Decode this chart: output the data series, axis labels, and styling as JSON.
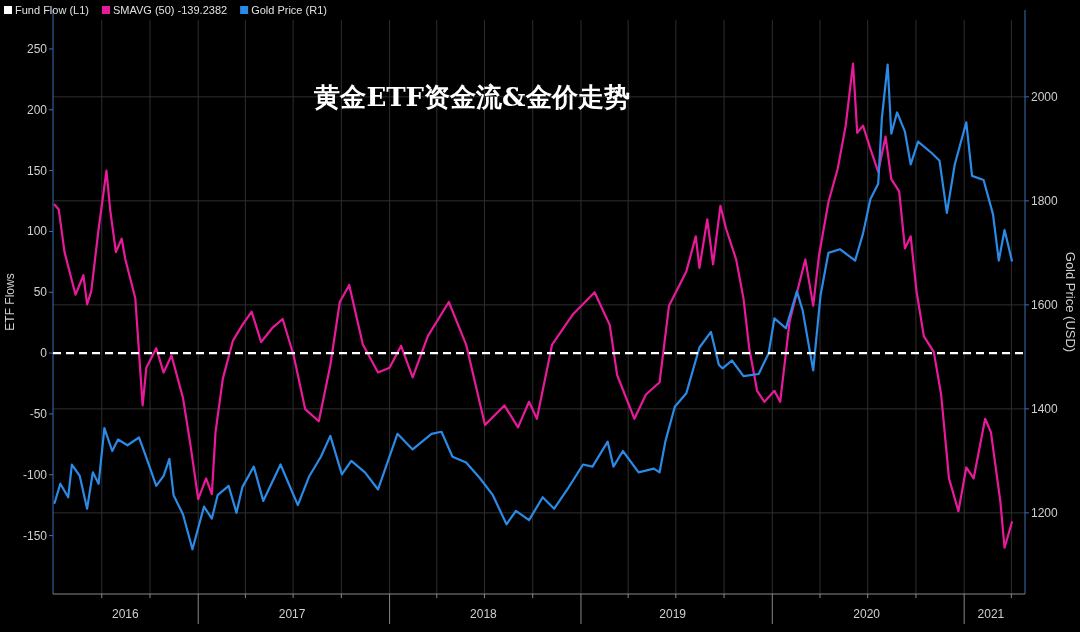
{
  "chart_data": {
    "type": "line",
    "title": "黄金ETF资金流&金价走势",
    "ylabel": "ETF Flows",
    "y2label": "Gold Price (USD)",
    "annotations": [
      "Fund Flow (L1)"
    ],
    "xlim": [
      "2016-03-30",
      "2021-04-27"
    ],
    "xticks": [
      {
        "value": "2016-07-01",
        "label": null
      },
      {
        "value": "2016-08-15",
        "label": "2016"
      },
      {
        "value": "2016-10-01",
        "label": null
      },
      {
        "value": "2017-01-01",
        "label": null
      },
      {
        "value": "2017-04-01",
        "label": null
      },
      {
        "value": "2017-06-29",
        "label": "2017"
      },
      {
        "value": "2017-07-01",
        "label": null
      },
      {
        "value": "2017-10-01",
        "label": null
      },
      {
        "value": "2018-01-01",
        "label": null
      },
      {
        "value": "2018-04-01",
        "label": null
      },
      {
        "value": "2018-06-29",
        "label": "2018"
      },
      {
        "value": "2018-07-01",
        "label": null
      },
      {
        "value": "2018-10-01",
        "label": null
      },
      {
        "value": "2019-01-01",
        "label": null
      },
      {
        "value": "2019-04-01",
        "label": null
      },
      {
        "value": "2019-06-25",
        "label": "2019"
      },
      {
        "value": "2019-07-01",
        "label": null
      },
      {
        "value": "2019-10-01",
        "label": null
      },
      {
        "value": "2020-01-01",
        "label": null
      },
      {
        "value": "2020-04-01",
        "label": null
      },
      {
        "value": "2020-06-29",
        "label": "2020"
      },
      {
        "value": "2020-07-01",
        "label": null
      },
      {
        "value": "2020-10-01",
        "label": null
      },
      {
        "value": "2021-01-01",
        "label": null
      },
      {
        "value": "2021-02-21",
        "label": "2021"
      },
      {
        "value": "2021-04-01",
        "label": null
      }
    ],
    "ylim": [
      -198,
      282
    ],
    "yticks": [
      -150,
      -100,
      -50,
      0,
      50,
      100,
      150,
      200,
      250
    ],
    "y2lim": [
      1044,
      2167
    ],
    "y2ticks": [
      1200,
      1400,
      1600,
      1800,
      2000
    ],
    "grid": true,
    "legend": "top left",
    "marker": "none",
    "line_style": "solid",
    "ref_lines": [
      {
        "axis": "y",
        "value": 0,
        "color": "#ffffff",
        "line_style": "dashed"
      }
    ],
    "series": [
      {
        "name": "SMAVG (50) -139.2382",
        "color": "#e8199a",
        "axis": "y",
        "x": [
          "2016-04-02",
          "2016-04-10",
          "2016-04-21",
          "2016-05-12",
          "2016-05-27",
          "2016-06-03",
          "2016-06-11",
          "2016-06-25",
          "2016-07-10",
          "2016-07-17",
          "2016-07-28",
          "2016-08-08",
          "2016-08-15",
          "2016-09-03",
          "2016-09-17",
          "2016-09-24",
          "2016-10-13",
          "2016-10-27",
          "2016-11-11",
          "2016-12-03",
          "2016-12-17",
          "2017-01-01",
          "2017-01-16",
          "2017-01-27",
          "2017-02-03",
          "2017-02-17",
          "2017-03-08",
          "2017-03-26",
          "2017-04-13",
          "2017-05-01",
          "2017-05-23",
          "2017-06-11",
          "2017-07-02",
          "2017-07-24",
          "2017-08-19",
          "2017-09-10",
          "2017-09-28",
          "2017-10-16",
          "2017-11-11",
          "2017-12-10",
          "2018-01-01",
          "2018-01-23",
          "2018-02-14",
          "2018-03-15",
          "2018-04-24",
          "2018-05-27",
          "2018-07-02",
          "2018-08-08",
          "2018-09-03",
          "2018-09-24",
          "2018-10-09",
          "2018-11-07",
          "2018-12-17",
          "2019-01-27",
          "2019-02-25",
          "2019-03-11",
          "2019-04-13",
          "2019-05-05",
          "2019-05-31",
          "2019-06-18",
          "2019-07-21",
          "2019-08-08",
          "2019-08-15",
          "2019-08-30",
          "2019-09-10",
          "2019-09-24",
          "2019-10-05",
          "2019-10-24",
          "2019-11-07",
          "2019-11-18",
          "2019-12-03",
          "2019-12-17",
          "2020-01-05",
          "2020-01-16",
          "2020-02-03",
          "2020-03-04",
          "2020-03-19",
          "2020-03-30",
          "2020-04-17",
          "2020-05-05",
          "2020-05-20",
          "2020-06-03",
          "2020-06-11",
          "2020-06-22",
          "2020-07-06",
          "2020-07-21",
          "2020-08-04",
          "2020-08-15",
          "2020-08-30",
          "2020-09-10",
          "2020-09-21",
          "2020-10-02",
          "2020-10-16",
          "2020-11-04",
          "2020-11-18",
          "2020-12-03",
          "2020-12-21",
          "2021-01-05",
          "2021-01-19",
          "2021-02-10",
          "2021-02-21",
          "2021-03-11",
          "2021-03-19",
          "2021-04-02"
        ],
        "values": [
          122,
          118,
          83,
          48,
          64,
          40,
          51,
          102,
          150,
          118,
          83,
          94,
          77,
          45,
          -43,
          -12,
          4,
          -16,
          -2,
          -37,
          -75,
          -120,
          -103,
          -116,
          -65,
          -21,
          10,
          23,
          34,
          9,
          21,
          28,
          -2,
          -46,
          -56,
          -10,
          42,
          56,
          7,
          -16,
          -12,
          6,
          -20,
          14,
          42,
          7,
          -59,
          -43,
          -61,
          -40,
          -54,
          7,
          32,
          50,
          23,
          -18,
          -54,
          -34,
          -24,
          39,
          67,
          96,
          70,
          110,
          73,
          121,
          102,
          77,
          45,
          4,
          -31,
          -40,
          -31,
          -40,
          26,
          77,
          39,
          80,
          124,
          152,
          187,
          238,
          181,
          187,
          168,
          149,
          178,
          143,
          133,
          86,
          96,
          51,
          14,
          1,
          -34,
          -103,
          -130,
          -94,
          -103,
          -54,
          -65,
          -122,
          -160,
          -139
        ]
      },
      {
        "name": "Gold Price  (R1)",
        "color": "#2a8ae6",
        "axis": "y2",
        "x": [
          "2016-04-02",
          "2016-04-13",
          "2016-04-28",
          "2016-05-05",
          "2016-05-20",
          "2016-06-03",
          "2016-06-14",
          "2016-06-25",
          "2016-07-06",
          "2016-07-21",
          "2016-08-01",
          "2016-08-19",
          "2016-09-10",
          "2016-09-21",
          "2016-10-13",
          "2016-10-27",
          "2016-11-07",
          "2016-11-15",
          "2016-12-03",
          "2016-12-21",
          "2017-01-12",
          "2017-01-27",
          "2017-02-07",
          "2017-02-28",
          "2017-03-15",
          "2017-03-26",
          "2017-04-17",
          "2017-05-05",
          "2017-06-07",
          "2017-07-10",
          "2017-08-01",
          "2017-08-23",
          "2017-09-10",
          "2017-10-02",
          "2017-10-20",
          "2017-11-15",
          "2017-12-10",
          "2018-01-16",
          "2018-02-14",
          "2018-03-22",
          "2018-04-10",
          "2018-05-01",
          "2018-05-27",
          "2018-06-22",
          "2018-07-17",
          "2018-08-12",
          "2018-08-30",
          "2018-09-24",
          "2018-10-20",
          "2018-11-11",
          "2018-12-06",
          "2019-01-05",
          "2019-01-23",
          "2019-02-21",
          "2019-03-04",
          "2019-03-22",
          "2019-04-21",
          "2019-05-20",
          "2019-05-31",
          "2019-06-11",
          "2019-06-29",
          "2019-07-21",
          "2019-08-15",
          "2019-09-06",
          "2019-09-21",
          "2019-09-28",
          "2019-10-16",
          "2019-11-07",
          "2019-12-06",
          "2019-12-25",
          "2020-01-05",
          "2020-01-27",
          "2020-02-17",
          "2020-02-28",
          "2020-03-19",
          "2020-04-02",
          "2020-04-17",
          "2020-05-09",
          "2020-06-07",
          "2020-06-22",
          "2020-07-06",
          "2020-07-21",
          "2020-07-28",
          "2020-08-08",
          "2020-08-15",
          "2020-08-26",
          "2020-09-10",
          "2020-09-21",
          "2020-10-05",
          "2020-10-31",
          "2020-11-15",
          "2020-11-29",
          "2020-12-14",
          "2021-01-05",
          "2021-01-16",
          "2021-02-07",
          "2021-02-25",
          "2021-03-08",
          "2021-03-19",
          "2021-04-02"
        ],
        "values": [
          1219,
          1256,
          1230,
          1293,
          1271,
          1208,
          1278,
          1256,
          1363,
          1319,
          1341,
          1330,
          1345,
          1315,
          1252,
          1271,
          1304,
          1234,
          1197,
          1130,
          1212,
          1189,
          1234,
          1252,
          1200,
          1249,
          1289,
          1223,
          1293,
          1215,
          1271,
          1308,
          1348,
          1274,
          1300,
          1278,
          1245,
          1352,
          1322,
          1352,
          1356,
          1308,
          1297,
          1267,
          1234,
          1178,
          1204,
          1186,
          1230,
          1208,
          1245,
          1293,
          1289,
          1337,
          1289,
          1319,
          1278,
          1285,
          1278,
          1337,
          1404,
          1430,
          1518,
          1548,
          1485,
          1478,
          1493,
          1463,
          1467,
          1507,
          1574,
          1555,
          1626,
          1589,
          1474,
          1618,
          1700,
          1707,
          1685,
          1737,
          1803,
          1833,
          1959,
          2062,
          1929,
          1970,
          1933,
          1870,
          1914,
          1892,
          1877,
          1777,
          1870,
          1951,
          1848,
          1840,
          1774,
          1685,
          1744,
          1685
        ]
      }
    ]
  }
}
